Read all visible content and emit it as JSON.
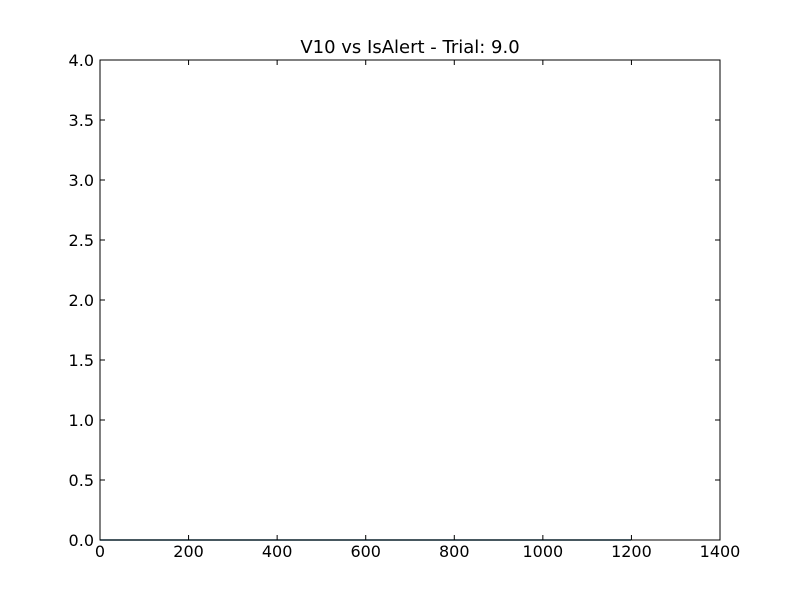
{
  "chart_data": {
    "type": "line",
    "title": "V10 vs IsAlert - Trial: 9.0",
    "xlabel": "",
    "ylabel": "",
    "xlim": [
      0,
      1400
    ],
    "ylim": [
      0,
      4
    ],
    "x_ticks": [
      0,
      200,
      400,
      600,
      800,
      1000,
      1200,
      1400
    ],
    "y_ticks": [
      0,
      0.5,
      1,
      1.5,
      2,
      2.5,
      3,
      3.5,
      4
    ],
    "x_tick_labels": [
      "0",
      "200",
      "400",
      "600",
      "800",
      "1000",
      "1200",
      "1400"
    ],
    "y_tick_labels": [
      "0.0",
      "0.5",
      "1.0",
      "1.5",
      "2.0",
      "2.5",
      "3.0",
      "3.5",
      "4.0"
    ],
    "grid": false,
    "series": [
      {
        "color": "#0000ff",
        "x": [
          0,
          1199
        ],
        "y": [
          0,
          0
        ]
      },
      {
        "color": "#008000",
        "x": [
          0,
          1199
        ],
        "y": [
          0,
          0
        ]
      }
    ]
  }
}
